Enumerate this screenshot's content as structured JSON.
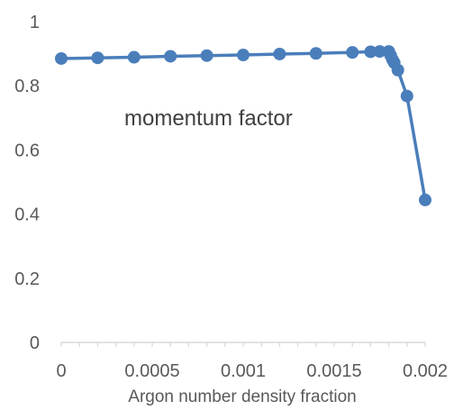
{
  "chart_data": {
    "type": "line",
    "annotation": "momentum factor",
    "xlabel": "Argon number density fraction",
    "ylabel": "",
    "xlim": [
      0,
      0.002
    ],
    "ylim": [
      0,
      1
    ],
    "x_ticks": [
      0,
      0.0005,
      0.001,
      0.0015,
      0.002
    ],
    "x_tick_labels": [
      "0",
      "0.0005",
      "0.001",
      "0.0015",
      "0.002"
    ],
    "y_ticks": [
      0,
      0.2,
      0.4,
      0.6,
      0.8,
      1
    ],
    "y_tick_labels": [
      "0",
      "0.2",
      "0.4",
      "0.6",
      "0.8",
      "1"
    ],
    "grid": false,
    "legend": "none",
    "series": [
      {
        "color": "#4a7ebb",
        "marker": "circle",
        "x": [
          0,
          0.0002,
          0.0004,
          0.0006,
          0.0008,
          0.001,
          0.0012,
          0.0014,
          0.0016,
          0.0017,
          0.00175,
          0.0018,
          0.00181,
          0.00182,
          0.00183,
          0.00185,
          0.0019,
          0.002
        ],
        "y": [
          0.885,
          0.887,
          0.889,
          0.892,
          0.894,
          0.896,
          0.899,
          0.901,
          0.904,
          0.906,
          0.907,
          0.907,
          0.895,
          0.882,
          0.872,
          0.849,
          0.768,
          0.444
        ]
      }
    ]
  }
}
